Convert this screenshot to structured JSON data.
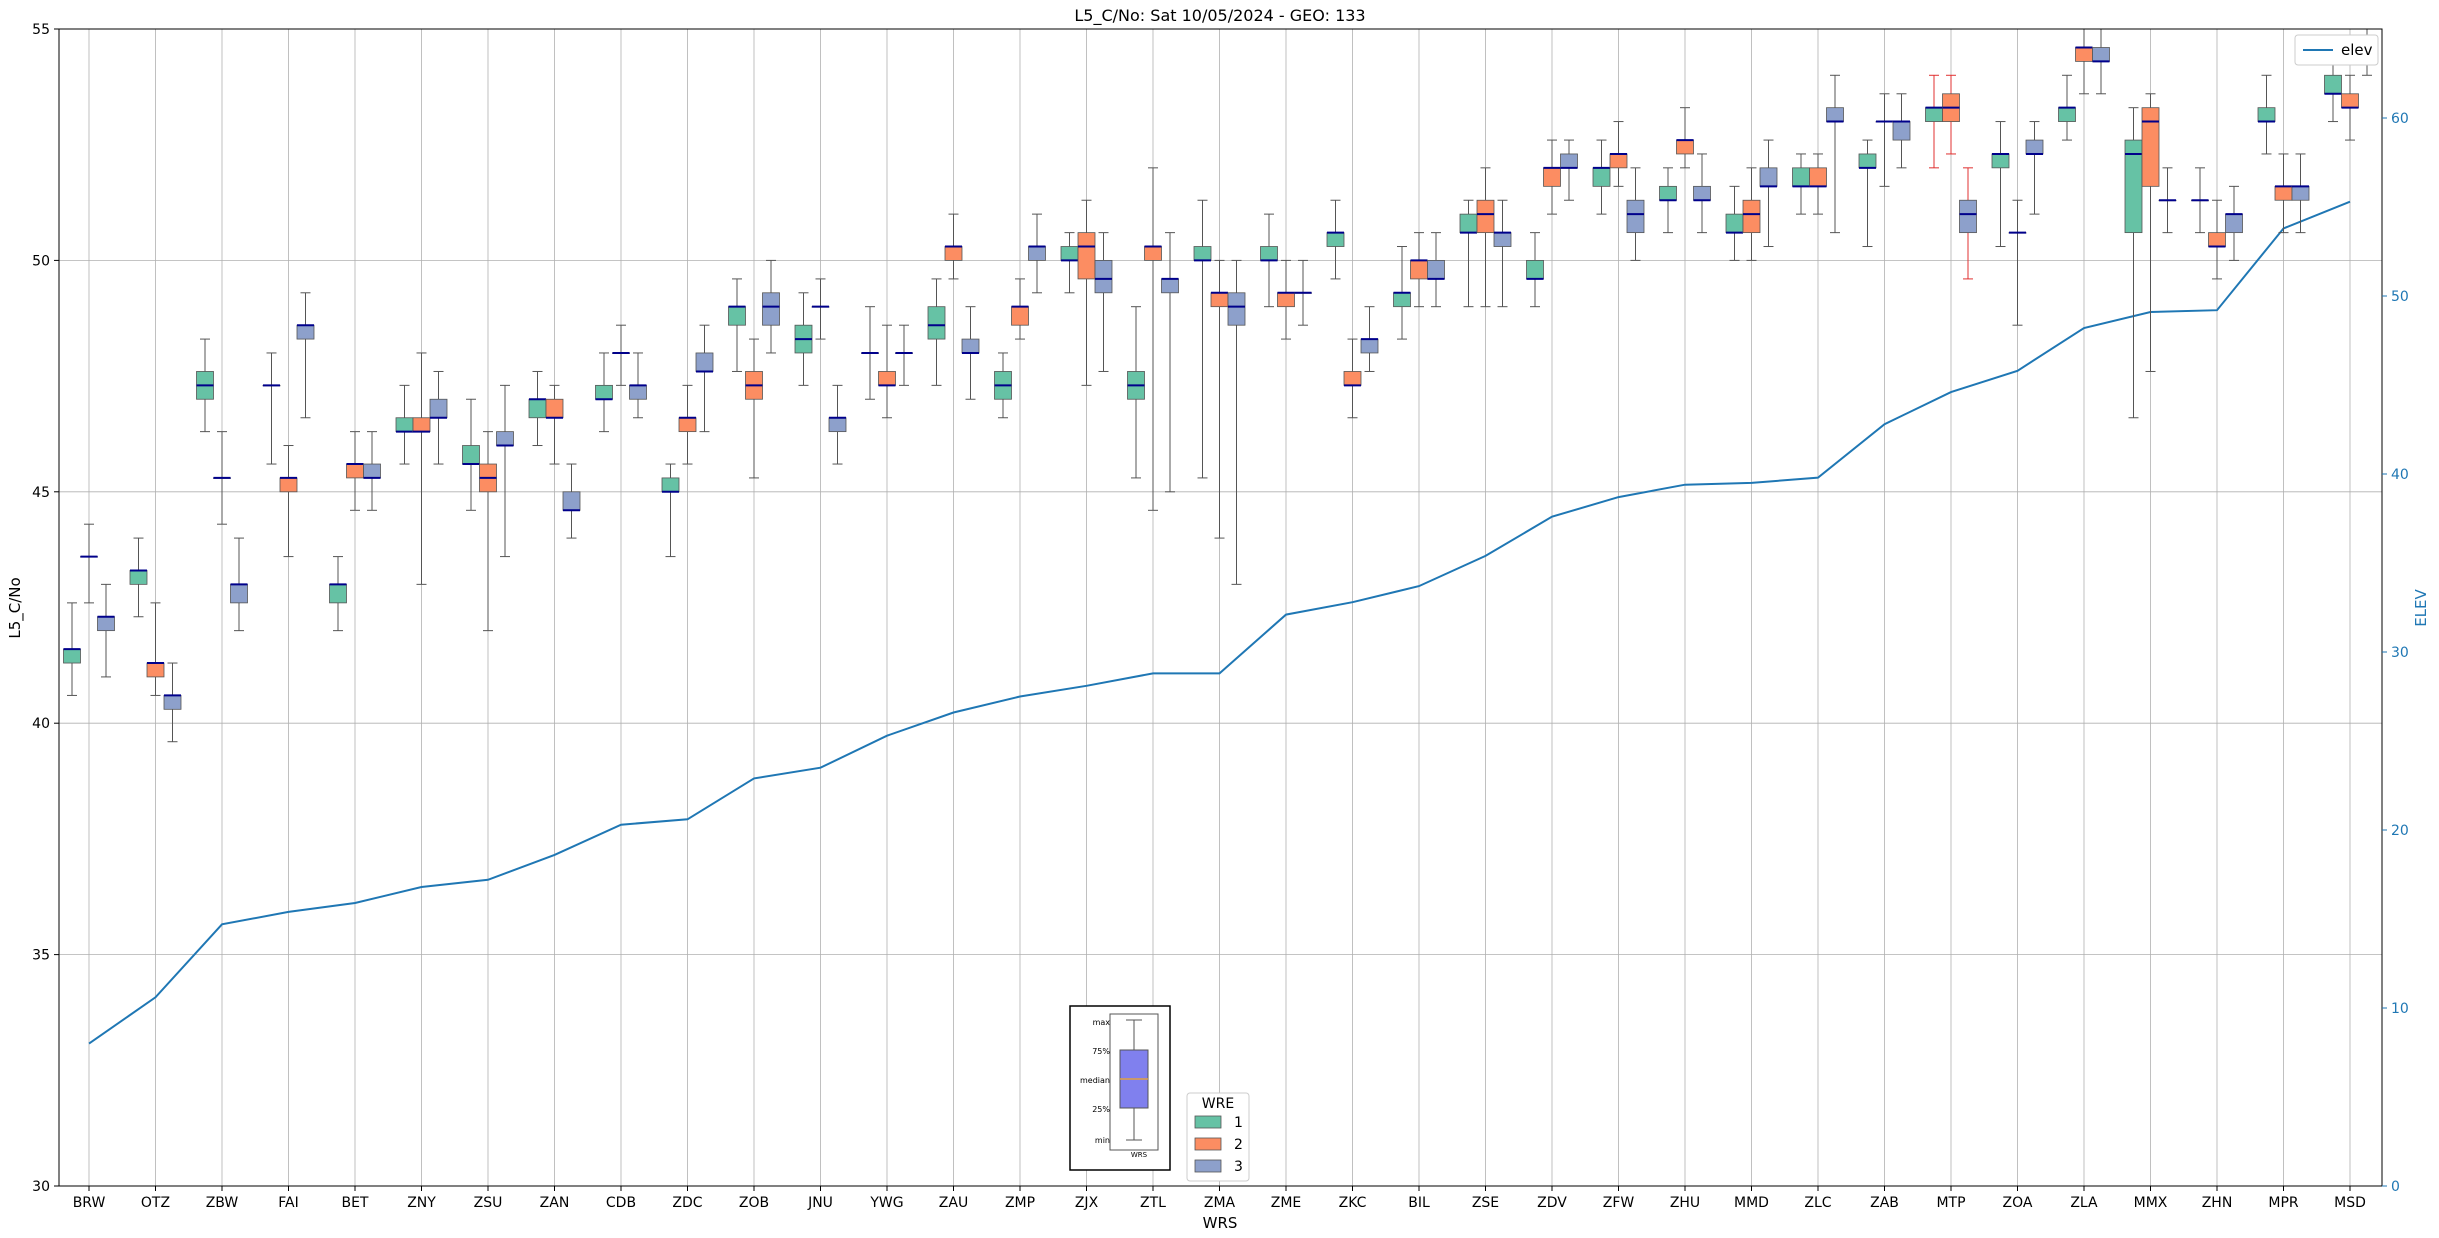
{
  "chart_data": {
    "type": "box",
    "title": "L5_C/No: Sat 10/05/2024 - GEO: 133",
    "xlabel": "WRS",
    "ylabel": "L5_C/No",
    "y2label": "ELEV",
    "ylim": [
      30,
      55
    ],
    "y2lim": [
      0,
      65
    ],
    "yticks": [
      30,
      35,
      40,
      45,
      50,
      55
    ],
    "y2ticks": [
      0,
      10,
      20,
      30,
      40,
      50,
      60
    ],
    "grid": true,
    "categories": [
      "BRW",
      "OTZ",
      "ZBW",
      "FAI",
      "BET",
      "ZNY",
      "ZSU",
      "ZAN",
      "CDB",
      "ZDC",
      "ZOB",
      "JNU",
      "YWG",
      "ZAU",
      "ZMP",
      "ZJX",
      "ZTL",
      "ZMA",
      "ZME",
      "ZKC",
      "BIL",
      "ZSE",
      "ZDV",
      "ZFW",
      "ZHU",
      "MMD",
      "ZLC",
      "ZAB",
      "MTP",
      "ZOA",
      "ZLA",
      "MMX",
      "ZHN",
      "MPR",
      "MSD"
    ],
    "legend_line": {
      "label": "elev",
      "position": "top-right",
      "color": "#1f77b4"
    },
    "legend_wre": {
      "title": "WRE",
      "position": "lower-center",
      "items": [
        {
          "label": "1",
          "color": "#66c2a5"
        },
        {
          "label": "2",
          "color": "#fc8d62"
        },
        {
          "label": "3",
          "color": "#8da0cb"
        }
      ]
    },
    "inset_legend": {
      "labels": [
        "max",
        "75%",
        "median",
        "25%",
        "min"
      ],
      "xlabel": "WRS",
      "box_color": "#8080ee",
      "median_color": "#e0a040"
    },
    "median_color": "#00008b",
    "elev": [
      8,
      10.6,
      14.7,
      15.4,
      15.9,
      16.8,
      17.2,
      18.6,
      20.3,
      20.6,
      22.9,
      23.5,
      25.3,
      26.6,
      27.5,
      28.1,
      28.8,
      28.8,
      32.1,
      32.8,
      33.7,
      35.4,
      37.6,
      38.7,
      39.4,
      39.5,
      39.8,
      42.8,
      44.6,
      45.8,
      48.2,
      49.1,
      49.2,
      53.8,
      55.3
    ],
    "boxes": [
      {
        "cat": "BRW",
        "wre": 1,
        "min": 40.6,
        "q1": 41.3,
        "med": 41.6,
        "q3": 41.6,
        "max": 42.6
      },
      {
        "cat": "BRW",
        "wre": 2,
        "min": 42.6,
        "q1": 43.6,
        "med": 43.6,
        "q3": 43.6,
        "max": 44.3
      },
      {
        "cat": "BRW",
        "wre": 3,
        "min": 41.0,
        "q1": 42.0,
        "med": 42.3,
        "q3": 42.3,
        "max": 43.0
      },
      {
        "cat": "OTZ",
        "wre": 1,
        "min": 42.3,
        "q1": 43.0,
        "med": 43.3,
        "q3": 43.3,
        "max": 44.0
      },
      {
        "cat": "OTZ",
        "wre": 2,
        "min": 40.6,
        "q1": 41.0,
        "med": 41.3,
        "q3": 41.3,
        "max": 42.6
      },
      {
        "cat": "OTZ",
        "wre": 3,
        "min": 39.6,
        "q1": 40.3,
        "med": 40.6,
        "q3": 40.6,
        "max": 41.3
      },
      {
        "cat": "ZBW",
        "wre": 1,
        "min": 46.3,
        "q1": 47.0,
        "med": 47.3,
        "q3": 47.6,
        "max": 48.3
      },
      {
        "cat": "ZBW",
        "wre": 2,
        "min": 44.3,
        "q1": 45.3,
        "med": 45.3,
        "q3": 45.3,
        "max": 46.3
      },
      {
        "cat": "ZBW",
        "wre": 3,
        "min": 42.0,
        "q1": 42.6,
        "med": 43.0,
        "q3": 43.0,
        "max": 44.0
      },
      {
        "cat": "FAI",
        "wre": 1,
        "min": 45.6,
        "q1": 47.3,
        "med": 47.3,
        "q3": 47.3,
        "max": 48.0
      },
      {
        "cat": "FAI",
        "wre": 2,
        "min": 43.6,
        "q1": 45.0,
        "med": 45.3,
        "q3": 45.3,
        "max": 46.0
      },
      {
        "cat": "FAI",
        "wre": 3,
        "min": 46.6,
        "q1": 48.3,
        "med": 48.6,
        "q3": 48.6,
        "max": 49.3
      },
      {
        "cat": "BET",
        "wre": 1,
        "min": 42.0,
        "q1": 42.6,
        "med": 43.0,
        "q3": 43.0,
        "max": 43.6
      },
      {
        "cat": "BET",
        "wre": 2,
        "min": 44.6,
        "q1": 45.3,
        "med": 45.6,
        "q3": 45.6,
        "max": 46.3
      },
      {
        "cat": "BET",
        "wre": 3,
        "min": 44.6,
        "q1": 45.3,
        "med": 45.3,
        "q3": 45.6,
        "max": 46.3
      },
      {
        "cat": "ZNY",
        "wre": 1,
        "min": 45.6,
        "q1": 46.3,
        "med": 46.3,
        "q3": 46.6,
        "max": 47.3
      },
      {
        "cat": "ZNY",
        "wre": 2,
        "min": 43.0,
        "q1": 46.3,
        "med": 46.3,
        "q3": 46.6,
        "max": 48.0
      },
      {
        "cat": "ZNY",
        "wre": 3,
        "min": 45.6,
        "q1": 46.6,
        "med": 46.6,
        "q3": 47.0,
        "max": 47.6
      },
      {
        "cat": "ZSU",
        "wre": 1,
        "min": 44.6,
        "q1": 45.6,
        "med": 45.6,
        "q3": 46.0,
        "max": 47.0
      },
      {
        "cat": "ZSU",
        "wre": 2,
        "min": 42.0,
        "q1": 45.0,
        "med": 45.3,
        "q3": 45.6,
        "max": 46.3
      },
      {
        "cat": "ZSU",
        "wre": 3,
        "min": 43.6,
        "q1": 46.0,
        "med": 46.0,
        "q3": 46.3,
        "max": 47.3
      },
      {
        "cat": "ZAN",
        "wre": 1,
        "min": 46.0,
        "q1": 46.6,
        "med": 47.0,
        "q3": 47.0,
        "max": 47.6
      },
      {
        "cat": "ZAN",
        "wre": 2,
        "min": 45.6,
        "q1": 46.6,
        "med": 46.6,
        "q3": 47.0,
        "max": 47.3
      },
      {
        "cat": "ZAN",
        "wre": 3,
        "min": 44.0,
        "q1": 44.6,
        "med": 44.6,
        "q3": 45.0,
        "max": 45.6
      },
      {
        "cat": "CDB",
        "wre": 1,
        "min": 46.3,
        "q1": 47.0,
        "med": 47.0,
        "q3": 47.3,
        "max": 48.0
      },
      {
        "cat": "CDB",
        "wre": 2,
        "min": 47.3,
        "q1": 48.0,
        "med": 48.0,
        "q3": 48.0,
        "max": 48.6
      },
      {
        "cat": "CDB",
        "wre": 3,
        "min": 46.6,
        "q1": 47.0,
        "med": 47.3,
        "q3": 47.3,
        "max": 48.0
      },
      {
        "cat": "ZDC",
        "wre": 1,
        "min": 43.6,
        "q1": 45.0,
        "med": 45.0,
        "q3": 45.3,
        "max": 45.6
      },
      {
        "cat": "ZDC",
        "wre": 2,
        "min": 45.6,
        "q1": 46.3,
        "med": 46.6,
        "q3": 46.6,
        "max": 47.3
      },
      {
        "cat": "ZDC",
        "wre": 3,
        "min": 46.3,
        "q1": 47.6,
        "med": 47.6,
        "q3": 48.0,
        "max": 48.6
      },
      {
        "cat": "ZOB",
        "wre": 1,
        "min": 47.6,
        "q1": 48.6,
        "med": 49.0,
        "q3": 49.0,
        "max": 49.6
      },
      {
        "cat": "ZOB",
        "wre": 2,
        "min": 45.3,
        "q1": 47.0,
        "med": 47.3,
        "q3": 47.6,
        "max": 48.3
      },
      {
        "cat": "ZOB",
        "wre": 3,
        "min": 48.0,
        "q1": 48.6,
        "med": 49.0,
        "q3": 49.3,
        "max": 50.0
      },
      {
        "cat": "JNU",
        "wre": 1,
        "min": 47.3,
        "q1": 48.0,
        "med": 48.3,
        "q3": 48.6,
        "max": 49.3
      },
      {
        "cat": "JNU",
        "wre": 2,
        "min": 48.3,
        "q1": 49.0,
        "med": 49.0,
        "q3": 49.0,
        "max": 49.6
      },
      {
        "cat": "JNU",
        "wre": 3,
        "min": 45.6,
        "q1": 46.3,
        "med": 46.6,
        "q3": 46.6,
        "max": 47.3
      },
      {
        "cat": "YWG",
        "wre": 1,
        "min": 47.0,
        "q1": 48.0,
        "med": 48.0,
        "q3": 48.0,
        "max": 49.0
      },
      {
        "cat": "YWG",
        "wre": 2,
        "min": 46.6,
        "q1": 47.3,
        "med": 47.3,
        "q3": 47.6,
        "max": 48.6
      },
      {
        "cat": "YWG",
        "wre": 3,
        "min": 47.3,
        "q1": 48.0,
        "med": 48.0,
        "q3": 48.0,
        "max": 48.6
      },
      {
        "cat": "ZAU",
        "wre": 1,
        "min": 47.3,
        "q1": 48.3,
        "med": 48.6,
        "q3": 49.0,
        "max": 49.6
      },
      {
        "cat": "ZAU",
        "wre": 2,
        "min": 49.6,
        "q1": 50.0,
        "med": 50.3,
        "q3": 50.3,
        "max": 51.0
      },
      {
        "cat": "ZAU",
        "wre": 3,
        "min": 47.0,
        "q1": 48.0,
        "med": 48.0,
        "q3": 48.3,
        "max": 49.0
      },
      {
        "cat": "ZMP",
        "wre": 1,
        "min": 46.6,
        "q1": 47.0,
        "med": 47.3,
        "q3": 47.6,
        "max": 48.0
      },
      {
        "cat": "ZMP",
        "wre": 2,
        "min": 48.3,
        "q1": 48.6,
        "med": 49.0,
        "q3": 49.0,
        "max": 49.6
      },
      {
        "cat": "ZMP",
        "wre": 3,
        "min": 49.3,
        "q1": 50.0,
        "med": 50.3,
        "q3": 50.3,
        "max": 51.0
      },
      {
        "cat": "ZJX",
        "wre": 1,
        "min": 49.3,
        "q1": 50.0,
        "med": 50.0,
        "q3": 50.3,
        "max": 50.6
      },
      {
        "cat": "ZJX",
        "wre": 2,
        "min": 47.3,
        "q1": 49.6,
        "med": 50.3,
        "q3": 50.6,
        "max": 51.3
      },
      {
        "cat": "ZJX",
        "wre": 3,
        "min": 47.6,
        "q1": 49.3,
        "med": 49.6,
        "q3": 50.0,
        "max": 50.6
      },
      {
        "cat": "ZTL",
        "wre": 1,
        "min": 45.3,
        "q1": 47.0,
        "med": 47.3,
        "q3": 47.6,
        "max": 49.0
      },
      {
        "cat": "ZTL",
        "wre": 2,
        "min": 44.6,
        "q1": 50.0,
        "med": 50.3,
        "q3": 50.3,
        "max": 52.0
      },
      {
        "cat": "ZTL",
        "wre": 3,
        "min": 45.0,
        "q1": 49.3,
        "med": 49.6,
        "q3": 49.6,
        "max": 50.6
      },
      {
        "cat": "ZMA",
        "wre": 1,
        "min": 45.3,
        "q1": 50.0,
        "med": 50.0,
        "q3": 50.3,
        "max": 51.3
      },
      {
        "cat": "ZMA",
        "wre": 2,
        "min": 44.0,
        "q1": 49.0,
        "med": 49.3,
        "q3": 49.3,
        "max": 50.0
      },
      {
        "cat": "ZMA",
        "wre": 3,
        "min": 43.0,
        "q1": 48.6,
        "med": 49.0,
        "q3": 49.3,
        "max": 50.0
      },
      {
        "cat": "ZME",
        "wre": 1,
        "min": 49.0,
        "q1": 50.0,
        "med": 50.0,
        "q3": 50.3,
        "max": 51.0
      },
      {
        "cat": "ZME",
        "wre": 2,
        "min": 48.3,
        "q1": 49.0,
        "med": 49.3,
        "q3": 49.3,
        "max": 50.0
      },
      {
        "cat": "ZME",
        "wre": 3,
        "min": 48.6,
        "q1": 49.3,
        "med": 49.3,
        "q3": 49.3,
        "max": 50.0
      },
      {
        "cat": "ZKC",
        "wre": 1,
        "min": 49.6,
        "q1": 50.3,
        "med": 50.6,
        "q3": 50.6,
        "max": 51.3
      },
      {
        "cat": "ZKC",
        "wre": 2,
        "min": 46.6,
        "q1": 47.3,
        "med": 47.3,
        "q3": 47.6,
        "max": 48.3
      },
      {
        "cat": "ZKC",
        "wre": 3,
        "min": 47.6,
        "q1": 48.0,
        "med": 48.3,
        "q3": 48.3,
        "max": 49.0
      },
      {
        "cat": "BIL",
        "wre": 1,
        "min": 48.3,
        "q1": 49.0,
        "med": 49.3,
        "q3": 49.3,
        "max": 50.3
      },
      {
        "cat": "BIL",
        "wre": 2,
        "min": 49.0,
        "q1": 49.6,
        "med": 50.0,
        "q3": 50.0,
        "max": 50.6
      },
      {
        "cat": "BIL",
        "wre": 3,
        "min": 49.0,
        "q1": 49.6,
        "med": 49.6,
        "q3": 50.0,
        "max": 50.6
      },
      {
        "cat": "ZSE",
        "wre": 1,
        "min": 49.0,
        "q1": 50.6,
        "med": 50.6,
        "q3": 51.0,
        "max": 51.3
      },
      {
        "cat": "ZSE",
        "wre": 2,
        "min": 49.0,
        "q1": 50.6,
        "med": 51.0,
        "q3": 51.3,
        "max": 52.0
      },
      {
        "cat": "ZSE",
        "wre": 3,
        "min": 49.0,
        "q1": 50.3,
        "med": 50.6,
        "q3": 50.6,
        "max": 51.3
      },
      {
        "cat": "ZDV",
        "wre": 1,
        "min": 49.0,
        "q1": 49.6,
        "med": 49.6,
        "q3": 50.0,
        "max": 50.6
      },
      {
        "cat": "ZDV",
        "wre": 2,
        "min": 51.0,
        "q1": 51.6,
        "med": 52.0,
        "q3": 52.0,
        "max": 52.6
      },
      {
        "cat": "ZDV",
        "wre": 3,
        "min": 51.3,
        "q1": 52.0,
        "med": 52.0,
        "q3": 52.3,
        "max": 52.6
      },
      {
        "cat": "ZFW",
        "wre": 1,
        "min": 51.0,
        "q1": 51.6,
        "med": 52.0,
        "q3": 52.0,
        "max": 52.6
      },
      {
        "cat": "ZFW",
        "wre": 2,
        "min": 51.6,
        "q1": 52.0,
        "med": 52.3,
        "q3": 52.3,
        "max": 53.0
      },
      {
        "cat": "ZFW",
        "wre": 3,
        "min": 50.0,
        "q1": 50.6,
        "med": 51.0,
        "q3": 51.3,
        "max": 52.0
      },
      {
        "cat": "ZHU",
        "wre": 1,
        "min": 50.6,
        "q1": 51.3,
        "med": 51.3,
        "q3": 51.6,
        "max": 52.0
      },
      {
        "cat": "ZHU",
        "wre": 2,
        "min": 52.0,
        "q1": 52.3,
        "med": 52.6,
        "q3": 52.6,
        "max": 53.3
      },
      {
        "cat": "ZHU",
        "wre": 3,
        "min": 50.6,
        "q1": 51.3,
        "med": 51.3,
        "q3": 51.6,
        "max": 52.3
      },
      {
        "cat": "MMD",
        "wre": 1,
        "min": 50.0,
        "q1": 50.6,
        "med": 50.6,
        "q3": 51.0,
        "max": 51.6
      },
      {
        "cat": "MMD",
        "wre": 2,
        "min": 50.0,
        "q1": 50.6,
        "med": 51.0,
        "q3": 51.3,
        "max": 52.0
      },
      {
        "cat": "MMD",
        "wre": 3,
        "min": 50.3,
        "q1": 51.6,
        "med": 51.6,
        "q3": 52.0,
        "max": 52.6
      },
      {
        "cat": "ZLC",
        "wre": 1,
        "min": 51.0,
        "q1": 51.6,
        "med": 51.6,
        "q3": 52.0,
        "max": 52.3
      },
      {
        "cat": "ZLC",
        "wre": 2,
        "min": 51.0,
        "q1": 51.6,
        "med": 51.6,
        "q3": 52.0,
        "max": 52.3
      },
      {
        "cat": "ZLC",
        "wre": 3,
        "min": 50.6,
        "q1": 53.0,
        "med": 53.0,
        "q3": 53.3,
        "max": 54.0
      },
      {
        "cat": "ZAB",
        "wre": 1,
        "min": 50.3,
        "q1": 52.0,
        "med": 52.0,
        "q3": 52.3,
        "max": 52.6
      },
      {
        "cat": "ZAB",
        "wre": 2,
        "min": 51.6,
        "q1": 53.0,
        "med": 53.0,
        "q3": 53.0,
        "max": 53.6
      },
      {
        "cat": "ZAB",
        "wre": 3,
        "min": 52.0,
        "q1": 52.6,
        "med": 53.0,
        "q3": 53.0,
        "max": 53.6
      },
      {
        "cat": "MTP",
        "wre": 1,
        "min": 52.0,
        "q1": 53.0,
        "med": 53.3,
        "q3": 53.3,
        "max": 54.0,
        "whisker": "#e03030"
      },
      {
        "cat": "MTP",
        "wre": 2,
        "min": 52.3,
        "q1": 53.0,
        "med": 53.3,
        "q3": 53.6,
        "max": 54.0,
        "whisker": "#e03030"
      },
      {
        "cat": "MTP",
        "wre": 3,
        "min": 49.6,
        "q1": 50.6,
        "med": 51.0,
        "q3": 51.3,
        "max": 52.0,
        "whisker": "#e03030"
      },
      {
        "cat": "ZOA",
        "wre": 1,
        "min": 50.3,
        "q1": 52.0,
        "med": 52.3,
        "q3": 52.3,
        "max": 53.0
      },
      {
        "cat": "ZOA",
        "wre": 2,
        "min": 48.6,
        "q1": 50.6,
        "med": 50.6,
        "q3": 50.6,
        "max": 51.3
      },
      {
        "cat": "ZOA",
        "wre": 3,
        "min": 51.0,
        "q1": 52.3,
        "med": 52.3,
        "q3": 52.6,
        "max": 53.0
      },
      {
        "cat": "ZLA",
        "wre": 1,
        "min": 52.6,
        "q1": 53.0,
        "med": 53.3,
        "q3": 53.3,
        "max": 54.0
      },
      {
        "cat": "ZLA",
        "wre": 2,
        "min": 53.6,
        "q1": 54.3,
        "med": 54.6,
        "q3": 54.6,
        "max": 55.0
      },
      {
        "cat": "ZLA",
        "wre": 3,
        "min": 53.6,
        "q1": 54.3,
        "med": 54.3,
        "q3": 54.6,
        "max": 55.0
      },
      {
        "cat": "MMX",
        "wre": 1,
        "min": 46.6,
        "q1": 50.6,
        "med": 52.3,
        "q3": 52.6,
        "max": 53.3
      },
      {
        "cat": "MMX",
        "wre": 2,
        "min": 47.6,
        "q1": 51.6,
        "med": 53.0,
        "q3": 53.3,
        "max": 53.6
      },
      {
        "cat": "MMX",
        "wre": 3,
        "min": 50.6,
        "q1": 51.3,
        "med": 51.3,
        "q3": 51.3,
        "max": 52.0
      },
      {
        "cat": "ZHN",
        "wre": 1,
        "min": 50.6,
        "q1": 51.3,
        "med": 51.3,
        "q3": 51.3,
        "max": 52.0
      },
      {
        "cat": "ZHN",
        "wre": 2,
        "min": 49.6,
        "q1": 50.3,
        "med": 50.3,
        "q3": 50.6,
        "max": 51.3
      },
      {
        "cat": "ZHN",
        "wre": 3,
        "min": 50.0,
        "q1": 50.6,
        "med": 51.0,
        "q3": 51.0,
        "max": 51.6
      },
      {
        "cat": "MPR",
        "wre": 1,
        "min": 52.3,
        "q1": 53.0,
        "med": 53.0,
        "q3": 53.3,
        "max": 54.0
      },
      {
        "cat": "MPR",
        "wre": 2,
        "min": 50.6,
        "q1": 51.3,
        "med": 51.6,
        "q3": 51.6,
        "max": 52.3
      },
      {
        "cat": "MPR",
        "wre": 3,
        "min": 50.6,
        "q1": 51.3,
        "med": 51.6,
        "q3": 51.6,
        "max": 52.3
      },
      {
        "cat": "MSD",
        "wre": 1,
        "min": 53.0,
        "q1": 53.6,
        "med": 53.6,
        "q3": 54.0,
        "max": 54.6
      },
      {
        "cat": "MSD",
        "wre": 2,
        "min": 52.6,
        "q1": 53.3,
        "med": 53.3,
        "q3": 53.6,
        "max": 54.0
      },
      {
        "cat": "MSD",
        "wre": 3,
        "min": 54.0,
        "q1": 54.3,
        "med": 54.3,
        "q3": 54.6,
        "max": 55.0
      }
    ]
  }
}
